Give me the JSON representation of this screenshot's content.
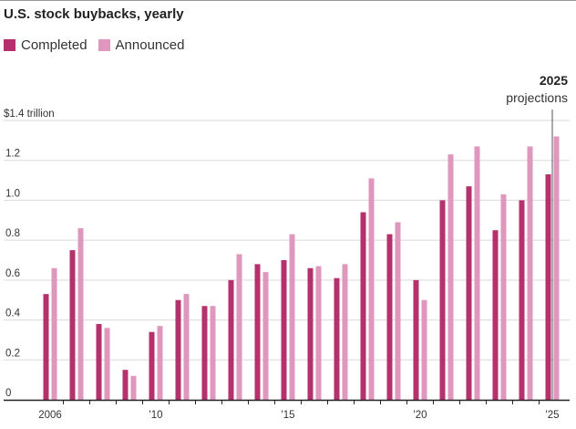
{
  "chart_data": {
    "type": "bar",
    "title": "U.S. stock buybacks, yearly",
    "unit_label": "$1.4 trillion",
    "x": [
      2006,
      2007,
      2008,
      2009,
      2010,
      2011,
      2012,
      2013,
      2014,
      2015,
      2016,
      2017,
      2018,
      2019,
      2020,
      2021,
      2022,
      2023,
      2024,
      2025
    ],
    "x_tick_values": [
      2006,
      2010,
      2015,
      2020,
      2025
    ],
    "x_tick_labels": [
      "2006",
      "'10",
      "'15",
      "'20",
      "'25"
    ],
    "y_tick_values": [
      0,
      0.2,
      0.4,
      0.6,
      0.8,
      1.0,
      1.2,
      1.4
    ],
    "y_tick_labels": [
      "0",
      "0.2",
      "0.4",
      "0.6",
      "0.8",
      "1.0",
      "1.2",
      ""
    ],
    "ylim": [
      0,
      1.4
    ],
    "grid": true,
    "legend_position": "top-left",
    "series": [
      {
        "name": "Completed",
        "color": "#b5316e",
        "values": [
          0.53,
          0.75,
          0.38,
          0.15,
          0.34,
          0.5,
          0.47,
          0.6,
          0.68,
          0.7,
          0.66,
          0.61,
          0.94,
          0.83,
          0.6,
          1.0,
          1.07,
          0.85,
          1.0,
          1.13
        ]
      },
      {
        "name": "Announced",
        "color": "#df97bd",
        "values": [
          0.66,
          0.86,
          0.36,
          0.12,
          0.37,
          0.53,
          0.47,
          0.73,
          0.64,
          0.83,
          0.67,
          0.68,
          1.11,
          0.89,
          0.5,
          1.23,
          1.27,
          1.03,
          1.27,
          1.32
        ]
      }
    ],
    "annotation": {
      "year": 2025,
      "label_bold": "2025",
      "label": "projections"
    }
  }
}
